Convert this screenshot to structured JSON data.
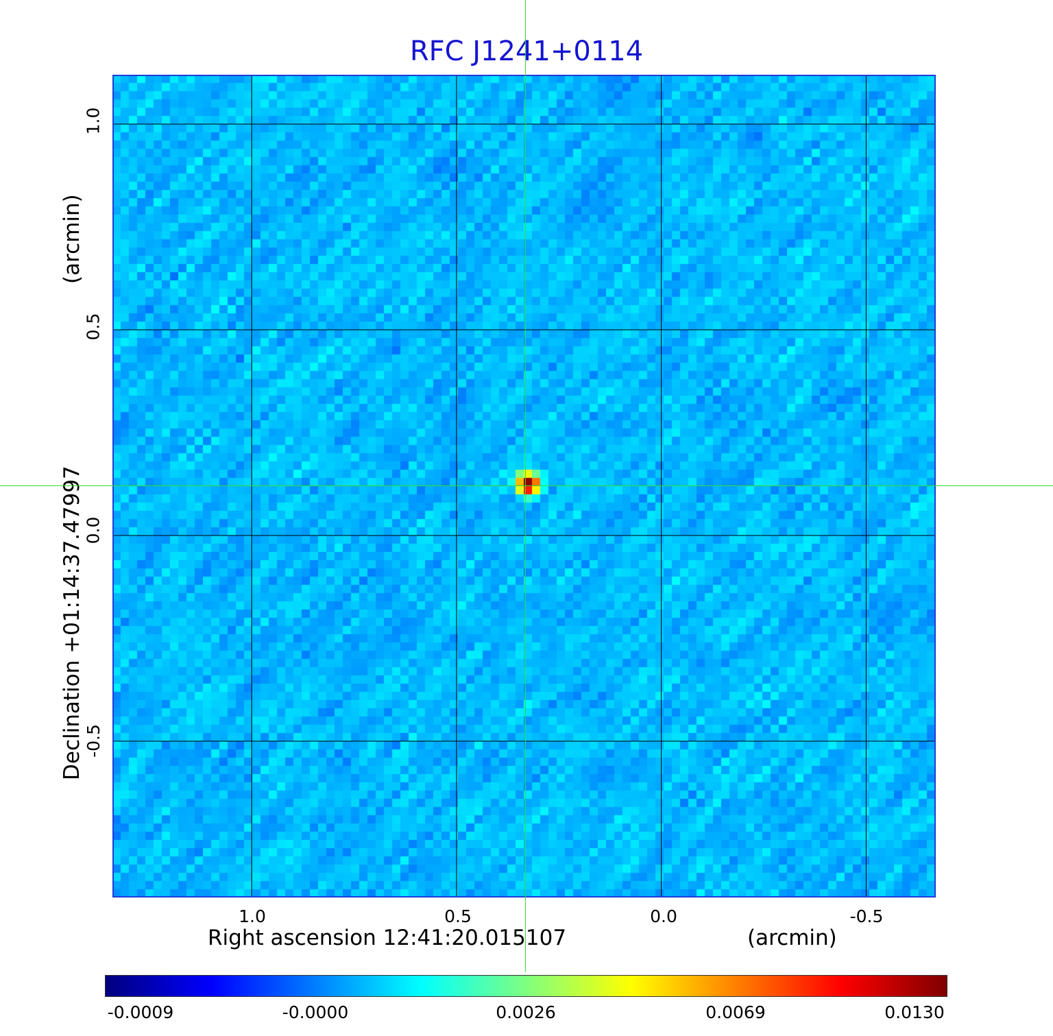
{
  "chart_data": {
    "type": "heatmap",
    "title": "RFC J1241+0114",
    "xlabel": "Right ascension  12:41:20.015107",
    "xunit": "(arcmin)",
    "ylabel": "Declination  +01:14:37.47997",
    "yunit": "(arcmin)",
    "xlim": [
      1.34,
      -0.67
    ],
    "ylim": [
      -0.88,
      1.12
    ],
    "xticks": [
      1.0,
      0.5,
      0.0,
      -0.5
    ],
    "xtick_labels": [
      "1.0",
      "0.5",
      "0.0",
      "-0.5"
    ],
    "yticks": [
      1.0,
      0.5,
      0.0,
      -0.5
    ],
    "ytick_labels": [
      "1.0",
      "0.5",
      "0.0",
      "-0.5"
    ],
    "grid": true,
    "colormap": "jet",
    "background_level": 0.0006,
    "noise_amplitude": 0.0009,
    "source": {
      "x": 0.325,
      "y": 0.125,
      "peak": 0.013
    },
    "crosshair": {
      "x": 0.325,
      "y": 0.125
    },
    "colorbar": {
      "min": -0.0009,
      "max": 0.013,
      "tick_labels": [
        "-0.0009",
        "-0.0000",
        "0.0026",
        "0.0069",
        "0.0130"
      ]
    }
  },
  "colors": {
    "title": "#1414d2",
    "frame": "#1e3cdc",
    "grid": "#000000",
    "crosshair": "#33dd33"
  }
}
